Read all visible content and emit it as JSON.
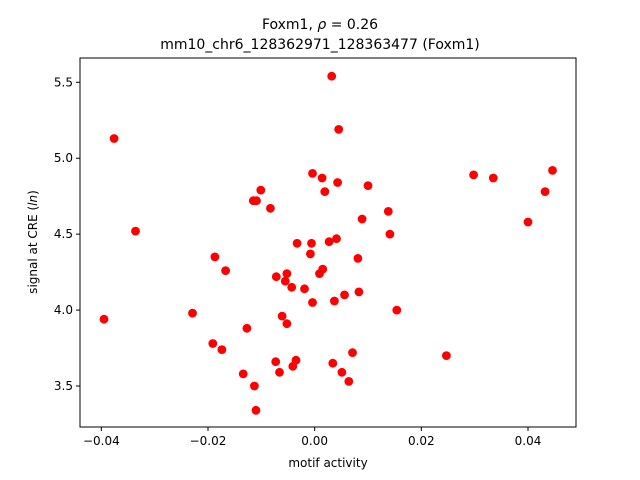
{
  "chart_data": {
    "type": "scatter",
    "title_line1": "Foxm1, ",
    "title_rho_symbol": "ρ",
    "title_rho_value": " = 0.26",
    "title_line2": "mm10_chr6_128362971_128363477 (Foxm1)",
    "xlabel": "motif activity",
    "ylabel_prefix": "signal at CRE (",
    "ylabel_italic": "ln",
    "ylabel_suffix": ")",
    "xlim": [
      -0.044,
      0.049
    ],
    "ylim": [
      3.23,
      5.66
    ],
    "x_ticks": [
      -0.04,
      -0.02,
      0.0,
      0.02,
      0.04
    ],
    "x_tick_labels": [
      "−0.04",
      "−0.02",
      "0.00",
      "0.02",
      "0.04"
    ],
    "y_ticks": [
      3.5,
      4.0,
      4.5,
      5.0,
      5.5
    ],
    "y_tick_labels": [
      "3.5",
      "4.0",
      "4.5",
      "5.0",
      "5.5"
    ],
    "marker_color": "#ff0000",
    "points": [
      {
        "x": -0.0395,
        "y": 3.94
      },
      {
        "x": -0.0376,
        "y": 5.13
      },
      {
        "x": -0.0336,
        "y": 4.52
      },
      {
        "x": -0.0229,
        "y": 3.98
      },
      {
        "x": -0.0191,
        "y": 3.78
      },
      {
        "x": -0.0187,
        "y": 4.35
      },
      {
        "x": -0.0174,
        "y": 3.74
      },
      {
        "x": -0.0167,
        "y": 4.26
      },
      {
        "x": -0.0134,
        "y": 3.58
      },
      {
        "x": -0.0127,
        "y": 3.88
      },
      {
        "x": -0.0115,
        "y": 4.72
      },
      {
        "x": -0.0113,
        "y": 3.5
      },
      {
        "x": -0.0109,
        "y": 4.72
      },
      {
        "x": -0.011,
        "y": 3.34
      },
      {
        "x": -0.0101,
        "y": 4.79
      },
      {
        "x": -0.0083,
        "y": 4.67
      },
      {
        "x": -0.0073,
        "y": 3.66
      },
      {
        "x": -0.0072,
        "y": 4.22
      },
      {
        "x": -0.0066,
        "y": 3.59
      },
      {
        "x": -0.0061,
        "y": 3.96
      },
      {
        "x": -0.0055,
        "y": 4.19
      },
      {
        "x": -0.0052,
        "y": 4.24
      },
      {
        "x": -0.0052,
        "y": 3.91
      },
      {
        "x": -0.0043,
        "y": 4.15
      },
      {
        "x": -0.0041,
        "y": 3.63
      },
      {
        "x": -0.0035,
        "y": 3.67
      },
      {
        "x": -0.0033,
        "y": 4.44
      },
      {
        "x": -0.0019,
        "y": 4.14
      },
      {
        "x": -0.0008,
        "y": 4.37
      },
      {
        "x": -0.0006,
        "y": 4.44
      },
      {
        "x": -0.0004,
        "y": 4.9
      },
      {
        "x": -0.0004,
        "y": 4.05
      },
      {
        "x": 0.0009,
        "y": 4.24
      },
      {
        "x": 0.0014,
        "y": 4.87
      },
      {
        "x": 0.0015,
        "y": 4.27
      },
      {
        "x": 0.0019,
        "y": 4.78
      },
      {
        "x": 0.0027,
        "y": 4.45
      },
      {
        "x": 0.0032,
        "y": 5.54
      },
      {
        "x": 0.0034,
        "y": 3.65
      },
      {
        "x": 0.0037,
        "y": 4.06
      },
      {
        "x": 0.0041,
        "y": 4.47
      },
      {
        "x": 0.0043,
        "y": 4.84
      },
      {
        "x": 0.0045,
        "y": 5.19
      },
      {
        "x": 0.0051,
        "y": 3.59
      },
      {
        "x": 0.0056,
        "y": 4.1
      },
      {
        "x": 0.0064,
        "y": 3.53
      },
      {
        "x": 0.0071,
        "y": 3.72
      },
      {
        "x": 0.0081,
        "y": 4.34
      },
      {
        "x": 0.0083,
        "y": 4.12
      },
      {
        "x": 0.0089,
        "y": 4.6
      },
      {
        "x": 0.01,
        "y": 4.82
      },
      {
        "x": 0.0138,
        "y": 4.65
      },
      {
        "x": 0.0141,
        "y": 4.5
      },
      {
        "x": 0.0154,
        "y": 4.0
      },
      {
        "x": 0.0247,
        "y": 3.7
      },
      {
        "x": 0.0298,
        "y": 4.89
      },
      {
        "x": 0.0335,
        "y": 4.87
      },
      {
        "x": 0.04,
        "y": 4.58
      },
      {
        "x": 0.0432,
        "y": 4.78
      },
      {
        "x": 0.0446,
        "y": 4.92
      }
    ]
  }
}
